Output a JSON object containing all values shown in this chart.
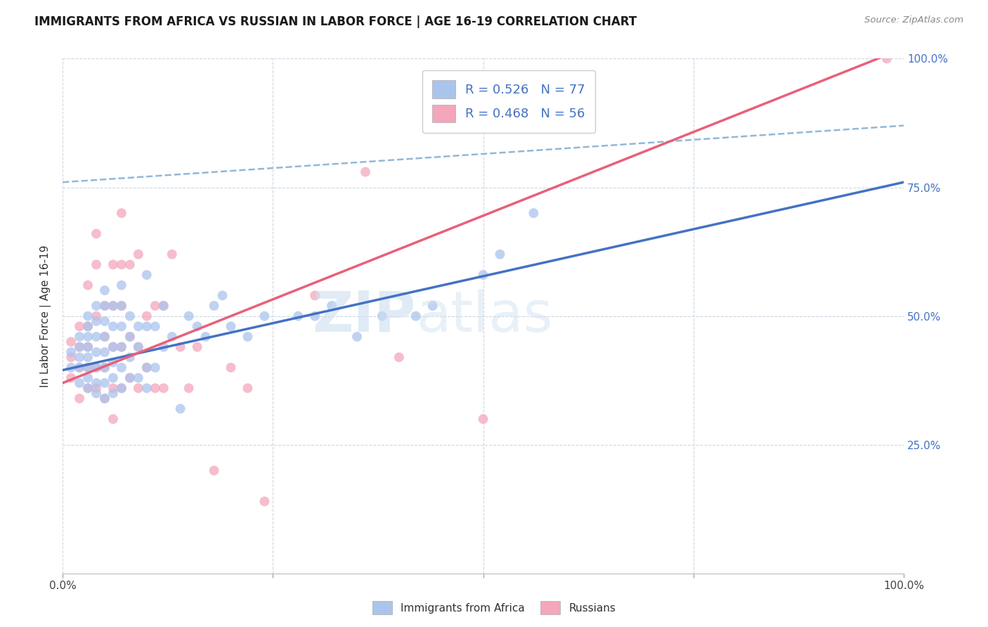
{
  "title": "IMMIGRANTS FROM AFRICA VS RUSSIAN IN LABOR FORCE | AGE 16-19 CORRELATION CHART",
  "source": "Source: ZipAtlas.com",
  "ylabel": "In Labor Force | Age 16-19",
  "bottom_legend": [
    "Immigrants from Africa",
    "Russians"
  ],
  "africa_color": "#aac4ed",
  "russian_color": "#f4a7bc",
  "africa_line_color": "#4472c4",
  "russian_line_color": "#e8607a",
  "dashed_line_color": "#92b8d8",
  "watermark_zip": "ZIP",
  "watermark_atlas": "atlas",
  "xlim": [
    0.0,
    1.0
  ],
  "ylim": [
    0.0,
    1.0
  ],
  "africa_line_x0": 0.0,
  "africa_line_y0": 0.395,
  "africa_line_x1": 1.0,
  "africa_line_y1": 0.76,
  "russian_line_x0": 0.0,
  "russian_line_y0": 0.37,
  "russian_line_x1": 1.0,
  "russian_line_y1": 1.02,
  "dashed_line_x0": 0.0,
  "dashed_line_y0": 0.76,
  "dashed_line_x1": 1.0,
  "dashed_line_y1": 0.87,
  "africa_scatter_x": [
    0.01,
    0.01,
    0.02,
    0.02,
    0.02,
    0.02,
    0.02,
    0.03,
    0.03,
    0.03,
    0.03,
    0.03,
    0.03,
    0.03,
    0.03,
    0.04,
    0.04,
    0.04,
    0.04,
    0.04,
    0.04,
    0.04,
    0.05,
    0.05,
    0.05,
    0.05,
    0.05,
    0.05,
    0.05,
    0.05,
    0.06,
    0.06,
    0.06,
    0.06,
    0.06,
    0.06,
    0.07,
    0.07,
    0.07,
    0.07,
    0.07,
    0.07,
    0.08,
    0.08,
    0.08,
    0.08,
    0.09,
    0.09,
    0.09,
    0.1,
    0.1,
    0.1,
    0.1,
    0.11,
    0.11,
    0.12,
    0.12,
    0.13,
    0.14,
    0.15,
    0.16,
    0.17,
    0.18,
    0.19,
    0.2,
    0.22,
    0.24,
    0.28,
    0.3,
    0.32,
    0.35,
    0.38,
    0.42,
    0.44,
    0.5,
    0.52,
    0.56
  ],
  "africa_scatter_y": [
    0.4,
    0.43,
    0.37,
    0.4,
    0.42,
    0.44,
    0.46,
    0.36,
    0.38,
    0.4,
    0.42,
    0.44,
    0.46,
    0.48,
    0.5,
    0.35,
    0.37,
    0.4,
    0.43,
    0.46,
    0.49,
    0.52,
    0.34,
    0.37,
    0.4,
    0.43,
    0.46,
    0.49,
    0.52,
    0.55,
    0.35,
    0.38,
    0.41,
    0.44,
    0.48,
    0.52,
    0.36,
    0.4,
    0.44,
    0.48,
    0.52,
    0.56,
    0.38,
    0.42,
    0.46,
    0.5,
    0.38,
    0.44,
    0.48,
    0.36,
    0.4,
    0.48,
    0.58,
    0.4,
    0.48,
    0.44,
    0.52,
    0.46,
    0.32,
    0.5,
    0.48,
    0.46,
    0.52,
    0.54,
    0.48,
    0.46,
    0.5,
    0.5,
    0.5,
    0.52,
    0.46,
    0.5,
    0.5,
    0.52,
    0.58,
    0.62,
    0.7
  ],
  "russian_scatter_x": [
    0.01,
    0.01,
    0.01,
    0.02,
    0.02,
    0.02,
    0.02,
    0.03,
    0.03,
    0.03,
    0.03,
    0.03,
    0.04,
    0.04,
    0.04,
    0.04,
    0.04,
    0.05,
    0.05,
    0.05,
    0.05,
    0.06,
    0.06,
    0.06,
    0.06,
    0.06,
    0.07,
    0.07,
    0.07,
    0.07,
    0.07,
    0.08,
    0.08,
    0.08,
    0.09,
    0.09,
    0.09,
    0.1,
    0.1,
    0.11,
    0.11,
    0.12,
    0.12,
    0.13,
    0.14,
    0.15,
    0.16,
    0.18,
    0.2,
    0.22,
    0.24,
    0.3,
    0.36,
    0.4,
    0.5,
    0.98
  ],
  "russian_scatter_y": [
    0.38,
    0.42,
    0.45,
    0.34,
    0.4,
    0.44,
    0.48,
    0.36,
    0.4,
    0.44,
    0.48,
    0.56,
    0.36,
    0.4,
    0.5,
    0.6,
    0.66,
    0.34,
    0.4,
    0.46,
    0.52,
    0.3,
    0.36,
    0.44,
    0.52,
    0.6,
    0.36,
    0.44,
    0.52,
    0.6,
    0.7,
    0.38,
    0.46,
    0.6,
    0.36,
    0.44,
    0.62,
    0.4,
    0.5,
    0.36,
    0.52,
    0.36,
    0.52,
    0.62,
    0.44,
    0.36,
    0.44,
    0.2,
    0.4,
    0.36,
    0.14,
    0.54,
    0.78,
    0.42,
    0.3,
    1.0
  ],
  "legend_r1": "R = 0.526",
  "legend_n1": "N = 77",
  "legend_r2": "R = 0.468",
  "legend_n2": "N = 56"
}
